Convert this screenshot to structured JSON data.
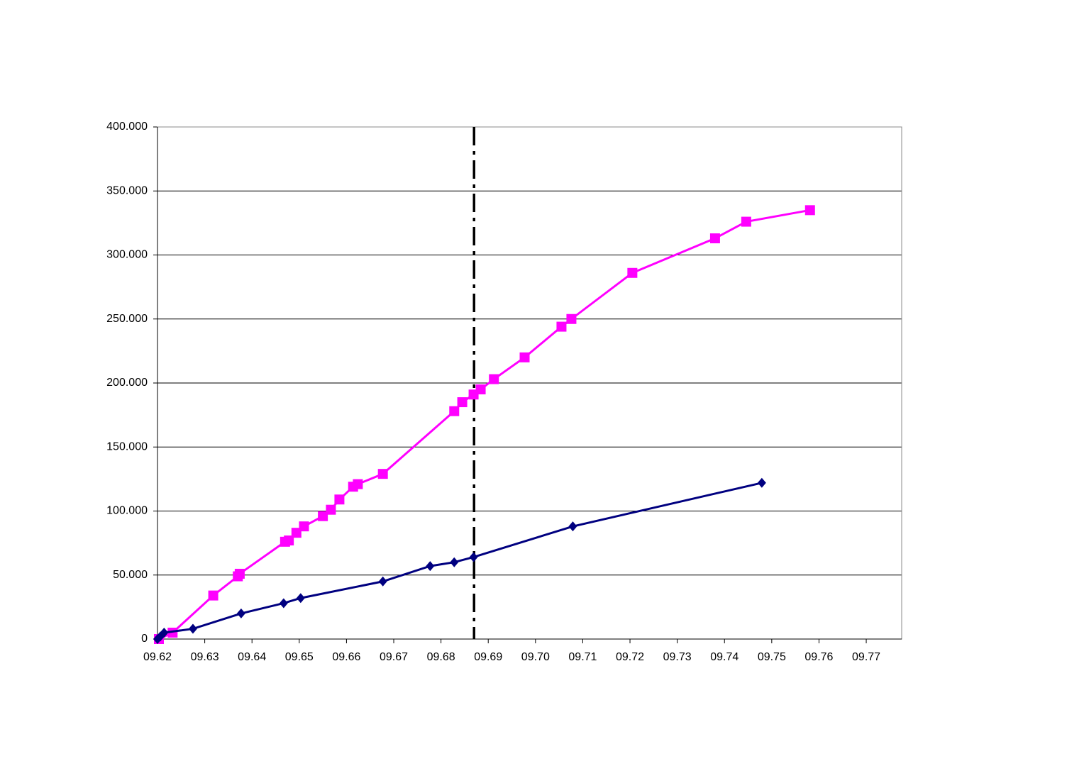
{
  "chart_data": {
    "type": "line",
    "xlim": [
      9.62,
      9.7775
    ],
    "xticks": [
      {
        "value": 9.62,
        "label": "09.62"
      },
      {
        "value": 9.63,
        "label": "09.63"
      },
      {
        "value": 9.64,
        "label": "09.64"
      },
      {
        "value": 9.65,
        "label": "09.65"
      },
      {
        "value": 9.66,
        "label": "09.66"
      },
      {
        "value": 9.67,
        "label": "09.67"
      },
      {
        "value": 9.68,
        "label": "09.68"
      },
      {
        "value": 9.69,
        "label": "09.69"
      },
      {
        "value": 9.7,
        "label": "09.70"
      },
      {
        "value": 9.71,
        "label": "09.71"
      },
      {
        "value": 9.72,
        "label": "09.72"
      },
      {
        "value": 9.73,
        "label": "09.73"
      },
      {
        "value": 9.74,
        "label": "09.74"
      },
      {
        "value": 9.75,
        "label": "09.75"
      },
      {
        "value": 9.76,
        "label": "09.76"
      },
      {
        "value": 9.77,
        "label": "09.77"
      }
    ],
    "ylim": [
      0,
      400000
    ],
    "yticks": [
      0,
      {
        "value": 50000,
        "label": "50.000"
      },
      {
        "value": 100000,
        "label": "100.000"
      },
      {
        "value": 150000,
        "label": "150.000"
      },
      {
        "value": 200000,
        "label": "200.000"
      },
      {
        "value": 250000,
        "label": "250.000"
      },
      {
        "value": 300000,
        "label": "300.000"
      },
      {
        "value": 350000,
        "label": "350.000"
      },
      {
        "value": 400000,
        "label": "400.000"
      }
    ],
    "grid": true,
    "vline": 9.687,
    "series": [
      {
        "color": "#ff00ff",
        "marker": "square",
        "x": [
          9.6203,
          9.6232,
          9.6318,
          9.637,
          9.6374,
          9.647,
          9.6478,
          9.6494,
          9.651,
          9.655,
          9.6567,
          9.6585,
          9.6614,
          9.6624,
          9.6677,
          9.6828,
          9.6845,
          9.6869,
          9.6884,
          9.6912,
          9.6977,
          9.7055,
          9.7076,
          9.7205,
          9.738,
          9.7446,
          9.7581
        ],
        "values": [
          0,
          5000,
          34000,
          49000,
          51000,
          76000,
          77000,
          83000,
          88000,
          96000,
          101000,
          109000,
          119000,
          121000,
          129000,
          178000,
          185000,
          191000,
          195000,
          203000,
          220000,
          244000,
          250000,
          286000,
          313000,
          326000,
          335000
        ]
      },
      {
        "color": "#000080",
        "marker": "diamond",
        "x": [
          9.62,
          9.6206,
          9.6214,
          9.6275,
          9.6377,
          9.6467,
          9.6503,
          9.6677,
          9.6777,
          9.6828,
          9.6869,
          9.7079,
          9.7479
        ],
        "values": [
          0,
          2000,
          5000,
          8000,
          20000,
          28000,
          32000,
          45000,
          57000,
          60000,
          64000,
          88000,
          122000
        ]
      }
    ]
  }
}
